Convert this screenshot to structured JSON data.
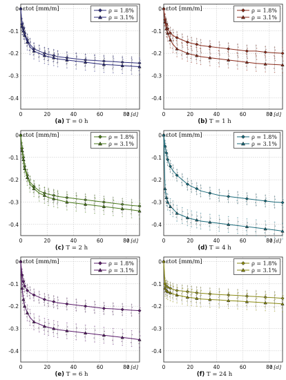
{
  "figure": {
    "ylabel": "εtot [mm/m]",
    "xlabel": "t [d]"
  },
  "chart_data": [
    {
      "type": "line",
      "label": "(a)",
      "caption": "T = 0 h",
      "color": "#2a2a7a",
      "ylabel": "εtot [mm/m]",
      "xlabel": "t [d]",
      "xlim": [
        0,
        90
      ],
      "ylim": [
        -0.45,
        0.02
      ],
      "xticks": [
        0,
        20,
        40,
        60,
        80
      ],
      "yticks": [
        0,
        -0.1,
        -0.2,
        -0.3,
        -0.4
      ],
      "series": [
        {
          "name": "ρ = 1.8%",
          "marker": "diamond",
          "x": [
            0,
            1,
            2,
            3,
            5,
            7,
            10,
            14,
            18,
            21,
            25,
            28,
            35,
            42,
            49,
            56,
            63,
            70,
            77,
            84,
            90
          ],
          "y": [
            0,
            -0.07,
            -0.09,
            -0.11,
            -0.14,
            -0.16,
            -0.18,
            -0.19,
            -0.2,
            -0.205,
            -0.21,
            -0.215,
            -0.22,
            -0.225,
            -0.23,
            -0.232,
            -0.235,
            -0.237,
            -0.24,
            -0.242,
            -0.244
          ]
        },
        {
          "name": "ρ = 3.1%",
          "marker": "triangle",
          "x": [
            0,
            1,
            2,
            3,
            5,
            7,
            10,
            14,
            18,
            21,
            25,
            28,
            35,
            42,
            49,
            56,
            63,
            70,
            77,
            84,
            90
          ],
          "y": [
            0,
            -0.08,
            -0.1,
            -0.12,
            -0.15,
            -0.17,
            -0.19,
            -0.2,
            -0.21,
            -0.215,
            -0.22,
            -0.225,
            -0.23,
            -0.235,
            -0.24,
            -0.245,
            -0.25,
            -0.252,
            -0.255,
            -0.258,
            -0.26
          ]
        }
      ]
    },
    {
      "type": "line",
      "label": "(b)",
      "caption": "T = 1 h",
      "color": "#8a2a1a",
      "ylabel": "εtot [mm/m]",
      "xlabel": "t [d]",
      "xlim": [
        0,
        90
      ],
      "ylim": [
        -0.45,
        0.02
      ],
      "xticks": [
        0,
        20,
        40,
        60,
        80
      ],
      "yticks": [
        0,
        -0.1,
        -0.2,
        -0.3,
        -0.4
      ],
      "series": [
        {
          "name": "ρ = 1.8%",
          "marker": "diamond",
          "x": [
            0,
            1,
            2,
            3,
            5,
            7,
            10,
            14,
            18,
            21,
            25,
            28,
            35,
            42,
            49,
            56,
            63,
            70,
            77,
            84,
            90
          ],
          "y": [
            0,
            -0.05,
            -0.07,
            -0.09,
            -0.11,
            -0.12,
            -0.13,
            -0.14,
            -0.15,
            -0.155,
            -0.16,
            -0.165,
            -0.17,
            -0.175,
            -0.18,
            -0.185,
            -0.19,
            -0.19,
            -0.195,
            -0.198,
            -0.2
          ]
        },
        {
          "name": "ρ = 3.1%",
          "marker": "triangle",
          "x": [
            0,
            1,
            2,
            3,
            5,
            7,
            10,
            14,
            18,
            21,
            25,
            28,
            35,
            42,
            49,
            56,
            63,
            70,
            77,
            84,
            90
          ],
          "y": [
            0,
            -0.06,
            -0.09,
            -0.11,
            -0.14,
            -0.16,
            -0.18,
            -0.19,
            -0.2,
            -0.205,
            -0.21,
            -0.215,
            -0.22,
            -0.225,
            -0.23,
            -0.235,
            -0.24,
            -0.245,
            -0.248,
            -0.25,
            -0.252
          ]
        }
      ]
    },
    {
      "type": "line",
      "label": "(c)",
      "caption": "T = 2 h",
      "color": "#4a7a1a",
      "ylabel": "εtot [mm/m]",
      "xlabel": "t [d]",
      "xlim": [
        0,
        90
      ],
      "ylim": [
        -0.45,
        0.02
      ],
      "xticks": [
        0,
        20,
        40,
        60,
        80
      ],
      "yticks": [
        0,
        -0.1,
        -0.2,
        -0.3,
        -0.4
      ],
      "series": [
        {
          "name": "ρ = 1.8%",
          "marker": "diamond",
          "x": [
            0,
            1,
            2,
            3,
            5,
            7,
            10,
            14,
            18,
            21,
            25,
            28,
            35,
            42,
            49,
            56,
            63,
            70,
            77,
            84,
            90
          ],
          "y": [
            0,
            -0.06,
            -0.1,
            -0.14,
            -0.18,
            -0.21,
            -0.23,
            -0.25,
            -0.26,
            -0.265,
            -0.27,
            -0.275,
            -0.28,
            -0.285,
            -0.29,
            -0.295,
            -0.3,
            -0.305,
            -0.31,
            -0.315,
            -0.318
          ]
        },
        {
          "name": "ρ = 3.1%",
          "marker": "triangle",
          "x": [
            0,
            1,
            2,
            3,
            5,
            7,
            10,
            14,
            18,
            21,
            25,
            28,
            35,
            42,
            49,
            56,
            63,
            70,
            77,
            84,
            90
          ],
          "y": [
            0,
            -0.07,
            -0.11,
            -0.15,
            -0.19,
            -0.22,
            -0.24,
            -0.26,
            -0.27,
            -0.28,
            -0.285,
            -0.29,
            -0.3,
            -0.305,
            -0.31,
            -0.315,
            -0.32,
            -0.325,
            -0.33,
            -0.335,
            -0.34
          ]
        }
      ]
    },
    {
      "type": "line",
      "label": "(d)",
      "caption": "T = 4 h",
      "color": "#1a6a7a",
      "ylabel": "εtot [mm/m]",
      "xlabel": "t [d]",
      "xlim": [
        0,
        90
      ],
      "ylim": [
        -0.45,
        0.02
      ],
      "xticks": [
        0,
        20,
        40,
        60,
        80
      ],
      "yticks": [
        0,
        -0.1,
        -0.2,
        -0.3,
        -0.4
      ],
      "series": [
        {
          "name": "ρ = 1.8%",
          "marker": "diamond",
          "x": [
            0,
            1,
            2,
            3,
            5,
            7,
            10,
            14,
            18,
            21,
            25,
            28,
            35,
            42,
            49,
            56,
            63,
            70,
            77,
            84,
            90
          ],
          "y": [
            0,
            -0.05,
            -0.08,
            -0.11,
            -0.14,
            -0.16,
            -0.18,
            -0.2,
            -0.22,
            -0.23,
            -0.24,
            -0.25,
            -0.26,
            -0.27,
            -0.275,
            -0.28,
            -0.285,
            -0.29,
            -0.295,
            -0.3,
            -0.302
          ]
        },
        {
          "name": "ρ = 3.1%",
          "marker": "triangle",
          "x": [
            0,
            1,
            2,
            3,
            5,
            7,
            10,
            14,
            18,
            21,
            25,
            28,
            35,
            42,
            49,
            56,
            63,
            70,
            77,
            84,
            90
          ],
          "y": [
            0,
            -0.24,
            -0.28,
            -0.3,
            -0.32,
            -0.33,
            -0.35,
            -0.36,
            -0.37,
            -0.375,
            -0.38,
            -0.385,
            -0.39,
            -0.395,
            -0.4,
            -0.405,
            -0.41,
            -0.415,
            -0.42,
            -0.425,
            -0.43
          ]
        }
      ]
    },
    {
      "type": "line",
      "label": "(e)",
      "caption": "T = 6 h",
      "color": "#5a1a6a",
      "ylabel": "εtot [mm/m]",
      "xlabel": "t [d]",
      "xlim": [
        0,
        90
      ],
      "ylim": [
        -0.45,
        0.02
      ],
      "xticks": [
        0,
        20,
        40,
        60,
        80
      ],
      "yticks": [
        0,
        -0.1,
        -0.2,
        -0.3,
        -0.4
      ],
      "series": [
        {
          "name": "ρ = 1.8%",
          "marker": "diamond",
          "x": [
            0,
            1,
            2,
            3,
            5,
            7,
            10,
            14,
            18,
            21,
            25,
            28,
            35,
            42,
            49,
            56,
            63,
            70,
            77,
            84,
            90
          ],
          "y": [
            0,
            -0.06,
            -0.09,
            -0.11,
            -0.13,
            -0.14,
            -0.15,
            -0.16,
            -0.17,
            -0.175,
            -0.18,
            -0.185,
            -0.19,
            -0.195,
            -0.2,
            -0.205,
            -0.21,
            -0.212,
            -0.215,
            -0.218,
            -0.22
          ]
        },
        {
          "name": "ρ = 3.1%",
          "marker": "triangle",
          "x": [
            0,
            1,
            2,
            3,
            5,
            7,
            10,
            14,
            18,
            21,
            25,
            28,
            35,
            42,
            49,
            56,
            63,
            70,
            77,
            84,
            90
          ],
          "y": [
            0,
            -0.12,
            -0.17,
            -0.2,
            -0.23,
            -0.25,
            -0.27,
            -0.28,
            -0.29,
            -0.295,
            -0.3,
            -0.305,
            -0.31,
            -0.315,
            -0.32,
            -0.325,
            -0.33,
            -0.335,
            -0.34,
            -0.345,
            -0.35
          ]
        }
      ]
    },
    {
      "type": "line",
      "label": "(f)",
      "caption": "T = 24 h",
      "color": "#8a8a10",
      "ylabel": "εtot [mm/m]",
      "xlabel": "t [d]",
      "xlim": [
        0,
        90
      ],
      "ylim": [
        -0.45,
        0.02
      ],
      "xticks": [
        0,
        20,
        40,
        60,
        80
      ],
      "yticks": [
        0,
        -0.1,
        -0.2,
        -0.3,
        -0.4
      ],
      "series": [
        {
          "name": "ρ = 1.8%",
          "marker": "diamond",
          "x": [
            0,
            1,
            2,
            3,
            5,
            7,
            10,
            14,
            18,
            21,
            25,
            28,
            35,
            42,
            49,
            56,
            63,
            70,
            77,
            84,
            90
          ],
          "y": [
            0,
            -0.1,
            -0.11,
            -0.115,
            -0.12,
            -0.125,
            -0.13,
            -0.132,
            -0.135,
            -0.137,
            -0.14,
            -0.142,
            -0.145,
            -0.148,
            -0.15,
            -0.152,
            -0.155,
            -0.157,
            -0.16,
            -0.162,
            -0.165
          ]
        },
        {
          "name": "ρ = 3.1%",
          "marker": "triangle",
          "x": [
            0,
            1,
            2,
            3,
            5,
            7,
            10,
            14,
            18,
            21,
            25,
            28,
            35,
            42,
            49,
            56,
            63,
            70,
            77,
            84,
            90
          ],
          "y": [
            0,
            -0.12,
            -0.13,
            -0.135,
            -0.14,
            -0.145,
            -0.15,
            -0.155,
            -0.16,
            -0.162,
            -0.165,
            -0.168,
            -0.17,
            -0.172,
            -0.175,
            -0.177,
            -0.18,
            -0.182,
            -0.185,
            -0.187,
            -0.19
          ]
        }
      ]
    }
  ]
}
